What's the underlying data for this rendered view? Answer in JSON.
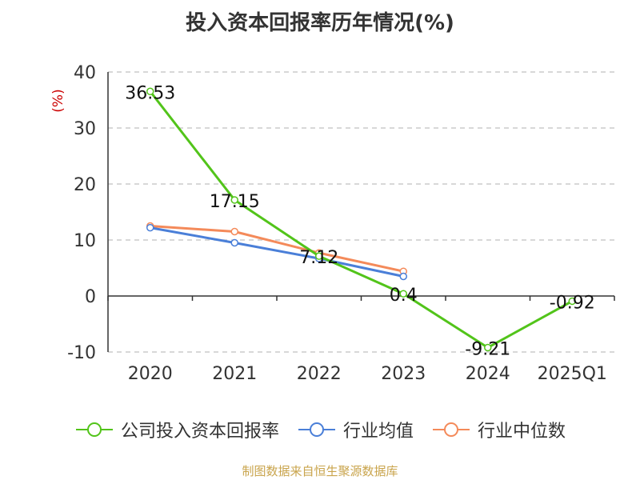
{
  "title": "投入资本回报率历年情况(%)",
  "source": "制图数据来自恒生聚源数据库",
  "chart_data": {
    "type": "line",
    "categories": [
      "2020",
      "2021",
      "2022",
      "2023",
      "2024",
      "2025Q1"
    ],
    "ylabel": "(%)",
    "ylim": [
      -10,
      40
    ],
    "yticks": [
      40,
      30,
      20,
      10,
      0,
      -10
    ],
    "grid": true,
    "legend_position": "bottom",
    "series": [
      {
        "name": "公司投入资本回报率",
        "color": "#52c41a",
        "values": [
          36.53,
          17.15,
          7.12,
          0.4,
          -9.21,
          -0.92
        ],
        "labels": [
          "36.53",
          "17.15",
          "7.12",
          "0.4",
          "-9.21",
          "-0.92"
        ]
      },
      {
        "name": "行业均值",
        "color": "#4a7fd8",
        "values": [
          12.2,
          9.5,
          6.7,
          3.5,
          null,
          null
        ]
      },
      {
        "name": "行业中位数",
        "color": "#f48a5a",
        "values": [
          12.5,
          11.5,
          7.7,
          4.4,
          null,
          null
        ]
      }
    ]
  }
}
